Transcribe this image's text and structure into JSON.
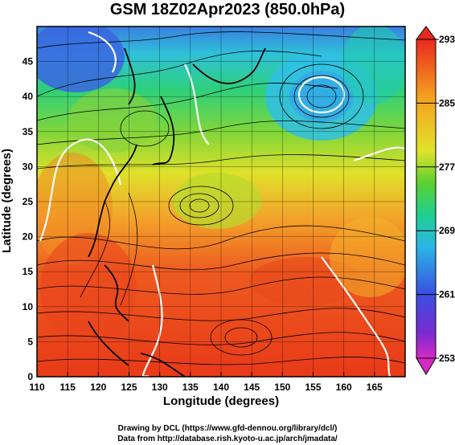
{
  "title": "GSM 18Z02Apr2023 (850.0hPa)",
  "x_axis": {
    "label": "Longitude (degrees)",
    "ticks": [
      "110",
      "115",
      "120",
      "125",
      "130",
      "135",
      "140",
      "145",
      "150",
      "155",
      "160",
      "165"
    ]
  },
  "y_axis": {
    "label": "Latitude (degrees)",
    "ticks": [
      "0",
      "5",
      "10",
      "15",
      "20",
      "25",
      "30",
      "35",
      "40",
      "45"
    ]
  },
  "colorbar": {
    "labels": [
      "293",
      "285",
      "277",
      "269",
      "261",
      "253"
    ],
    "colors": [
      "#e8291c",
      "#f4a020",
      "#f2e82a",
      "#57c82f",
      "#1fcf7f",
      "#2ab6e6",
      "#3a5fe0",
      "#6a2bd0",
      "#d02ac8"
    ]
  },
  "credits": {
    "line1": "Drawing by DCL (https://www.gfd-dennou.org/library/dcl/)",
    "line2": "Data from http://database.rish.kyoto-u.ac.jp/arch/jmadata/"
  },
  "chart_data": {
    "type": "map",
    "title": "GSM 18Z02Apr2023 (850.0hPa)",
    "xlabel": "Longitude (degrees)",
    "ylabel": "Latitude (degrees)",
    "xlim": [
      110,
      170
    ],
    "ylim": [
      0,
      50
    ],
    "colorbar_range": [
      253,
      293
    ],
    "colorbar_ticks": [
      293,
      285,
      277,
      269,
      261,
      253
    ]
  }
}
